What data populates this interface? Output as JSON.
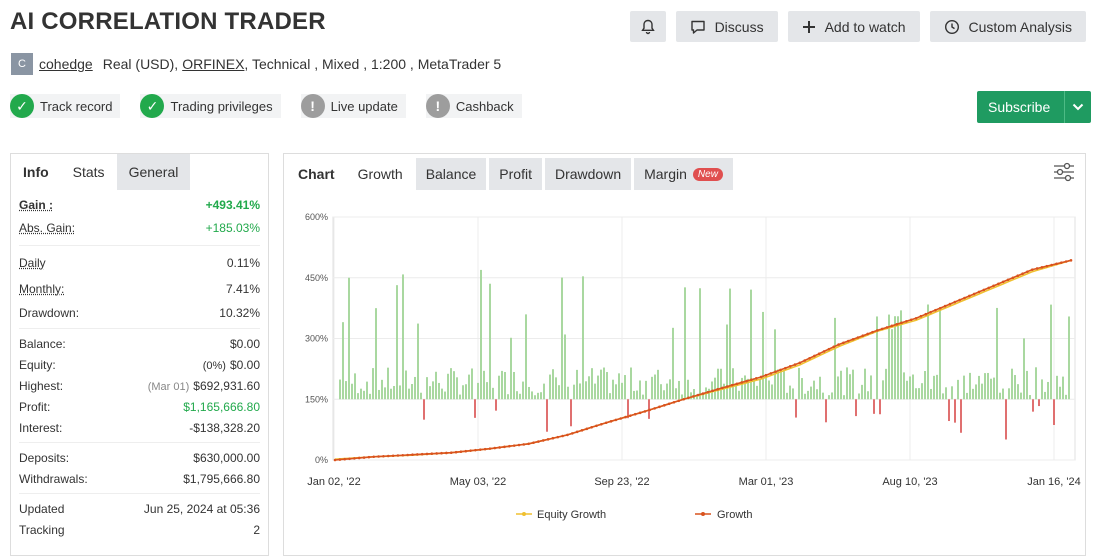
{
  "header": {
    "title": "AI CORRELATION TRADER",
    "buttons": {
      "discuss": "Discuss",
      "watch": "Add to watch",
      "custom": "Custom Analysis"
    }
  },
  "account": {
    "avatar_letter": "C",
    "user": "cohedge",
    "type": "Real (USD),",
    "broker": "ORFINEX",
    "details": ", Technical , Mixed , 1:200 , MetaTrader 5"
  },
  "badges": [
    {
      "label": "Track record",
      "status": "ok"
    },
    {
      "label": "Trading privileges",
      "status": "ok"
    },
    {
      "label": "Live update",
      "status": "warn"
    },
    {
      "label": "Cashback",
      "status": "warn"
    }
  ],
  "subscribe": {
    "label": "Subscribe"
  },
  "stats": {
    "tabs": [
      "Info",
      "Stats",
      "General"
    ],
    "gain_label": "Gain :",
    "gain": "+493.41%",
    "abs_gain_label": "Abs. Gain:",
    "abs_gain": "+185.03%",
    "daily_label": "Daily",
    "daily": "0.11%",
    "monthly_label": "Monthly:",
    "monthly": "7.41%",
    "drawdown_label": "Drawdown:",
    "drawdown": "10.32%",
    "balance_label": "Balance:",
    "balance": "$0.00",
    "equity_label": "Equity:",
    "equity_pct": "(0%)",
    "equity": "$0.00",
    "highest_label": "Highest:",
    "highest_date": "(Mar 01)",
    "highest": "$692,931.60",
    "profit_label": "Profit:",
    "profit": "$1,165,666.80",
    "interest_label": "Interest:",
    "interest": "-$138,328.20",
    "deposits_label": "Deposits:",
    "deposits": "$630,000.00",
    "withdrawals_label": "Withdrawals:",
    "withdrawals": "$1,795,666.80",
    "updated_label": "Updated",
    "updated": "Jun 25, 2024 at 05:36",
    "tracking_label": "Tracking",
    "tracking": "2"
  },
  "chart_tabs": {
    "label": "Chart",
    "growth": "Growth",
    "balance": "Balance",
    "profit": "Profit",
    "drawdown": "Drawdown",
    "margin": "Margin",
    "new": "New"
  },
  "chart_data": {
    "type": "line",
    "yticks": [
      "0%",
      "150%",
      "300%",
      "450%",
      "600%"
    ],
    "ylim": [
      0,
      600
    ],
    "xticks": [
      "Jan 02, '22",
      "May 03, '22",
      "Sep 23, '22",
      "Mar 01, '23",
      "Aug 10, '23",
      "Jan 16, '24"
    ],
    "colors": {
      "growth": "#d9531e",
      "equity": "#f0c030",
      "bar_pos": "#a9d8a0",
      "bar_neg": "#e07070"
    },
    "series": [
      {
        "name": "Equity Growth",
        "values": [
          2,
          8,
          12,
          18,
          28,
          40,
          62,
          92,
          120,
          150,
          175,
          200,
          235,
          280,
          318,
          345,
          385,
          425,
          465,
          493
        ]
      },
      {
        "name": "Growth",
        "values": [
          0,
          8,
          13,
          18,
          28,
          40,
          62,
          92,
          120,
          150,
          178,
          205,
          240,
          285,
          320,
          350,
          390,
          430,
          470,
          493
        ]
      }
    ],
    "legend": [
      "Equity Growth",
      "Growth"
    ]
  }
}
